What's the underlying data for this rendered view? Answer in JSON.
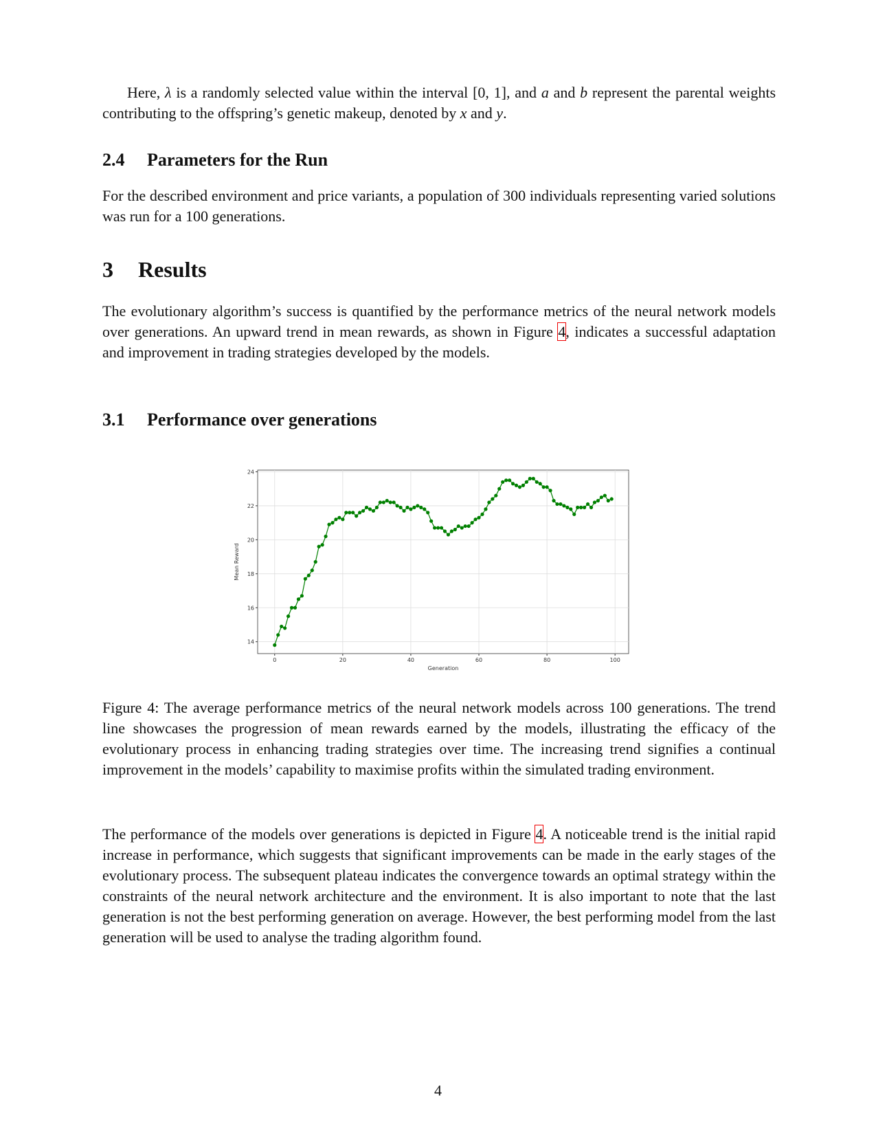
{
  "intro": [
    "Here, ",
    "λ",
    " is a randomly selected value within the interval [0, 1], and ",
    "a",
    " and ",
    "b",
    " represent the parental weights contributing to the offspring’s genetic makeup, denoted by ",
    "x",
    " and ",
    "y",
    "."
  ],
  "section_2_4": {
    "number": "2.4",
    "title": "Parameters for the Run",
    "text": "For the described environment and price variants, a population of 300 individuals representing varied solutions was run for a 100 generations."
  },
  "section_3": {
    "number": "3",
    "title": "Results",
    "text": [
      "The evolutionary algorithm’s success is quantified by the performance metrics of the neural network models over generations. An upward trend in mean rewards, as shown in Figure ",
      "4",
      ", indicates a successful adaptation and improvement in trading strategies developed by the models."
    ]
  },
  "section_3_1": {
    "number": "3.1",
    "title": "Performance over generations"
  },
  "chart_data": {
    "type": "line",
    "xlabel": "Generation",
    "ylabel": "Mean Reward",
    "color": "#008000",
    "grid": true,
    "x": [
      0,
      1,
      2,
      3,
      4,
      5,
      6,
      7,
      8,
      9,
      10,
      11,
      12,
      13,
      14,
      15,
      16,
      17,
      18,
      19,
      20,
      21,
      22,
      23,
      24,
      25,
      26,
      27,
      28,
      29,
      30,
      31,
      32,
      33,
      34,
      35,
      36,
      37,
      38,
      39,
      40,
      41,
      42,
      43,
      44,
      45,
      46,
      47,
      48,
      49,
      50,
      51,
      52,
      53,
      54,
      55,
      56,
      57,
      58,
      59,
      60,
      61,
      62,
      63,
      64,
      65,
      66,
      67,
      68,
      69,
      70,
      71,
      72,
      73,
      74,
      75,
      76,
      77,
      78,
      79,
      80,
      81,
      82,
      83,
      84,
      85,
      86,
      87,
      88,
      89,
      90,
      91,
      92,
      93,
      94,
      95,
      96,
      97,
      98,
      99
    ],
    "values": [
      13.8,
      14.4,
      14.9,
      14.8,
      15.5,
      16.0,
      16.0,
      16.5,
      16.7,
      17.7,
      17.9,
      18.2,
      18.7,
      19.6,
      19.7,
      20.2,
      20.9,
      21.0,
      21.2,
      21.3,
      21.2,
      21.6,
      21.6,
      21.6,
      21.4,
      21.6,
      21.7,
      21.9,
      21.8,
      21.7,
      21.9,
      22.2,
      22.2,
      22.3,
      22.2,
      22.2,
      22.0,
      21.9,
      21.7,
      21.9,
      21.8,
      21.9,
      22.0,
      21.9,
      21.8,
      21.6,
      21.1,
      20.7,
      20.7,
      20.7,
      20.5,
      20.3,
      20.5,
      20.6,
      20.8,
      20.7,
      20.8,
      20.8,
      21.0,
      21.2,
      21.3,
      21.5,
      21.8,
      22.2,
      22.4,
      22.6,
      23.0,
      23.4,
      23.5,
      23.5,
      23.3,
      23.2,
      23.1,
      23.2,
      23.4,
      23.6,
      23.6,
      23.4,
      23.3,
      23.1,
      23.1,
      22.9,
      22.3,
      22.1,
      22.1,
      22.0,
      21.9,
      21.8,
      21.5,
      21.9,
      21.9,
      21.9,
      22.1,
      21.9,
      22.2,
      22.3,
      22.5,
      22.6,
      22.3,
      22.4
    ],
    "xlim": [
      -5,
      104
    ],
    "ylim": [
      13.3,
      24.1
    ],
    "xticks": [
      0,
      20,
      40,
      60,
      80,
      100
    ],
    "yticks": [
      14,
      16,
      18,
      20,
      22,
      24
    ]
  },
  "caption": "Figure 4: The average performance metrics of the neural network models across 100 generations. The trend line showcases the progression of mean rewards earned by the models, illustrating the efficacy of the evolutionary process in enhancing trading strategies over time. The increasing trend signifies a continual improvement in the models’ capability to maximise profits within the simulated trading environment.",
  "closing": [
    "The performance of the models over generations is depicted in Figure ",
    "4",
    ". A noticeable trend is the initial rapid increase in performance, which suggests that significant improvements can be made in the early stages of the evolutionary process. The subsequent plateau indicates the convergence towards an optimal strategy within the constraints of the neural network architecture and the environment. It is also important to note that the last generation is not the best performing generation on average. However, the best performing model from the last generation will be used to analyse the trading algorithm found."
  ],
  "page_number": "4"
}
